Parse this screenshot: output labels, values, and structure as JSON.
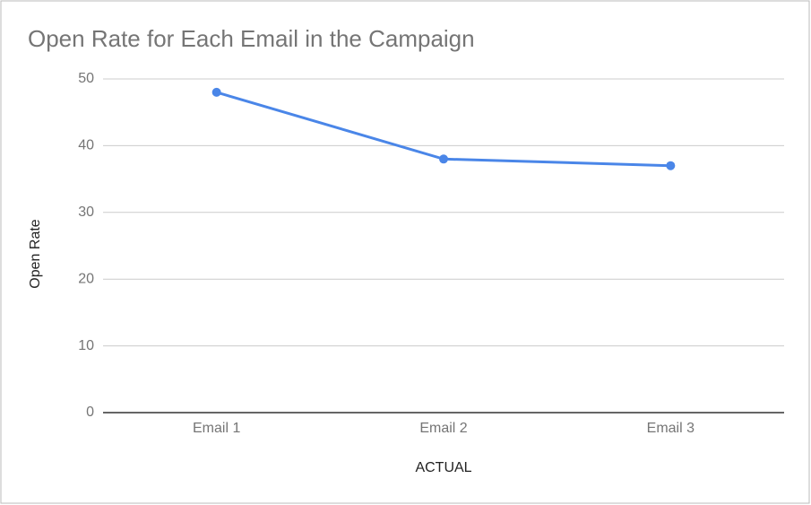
{
  "chart_data": {
    "type": "line",
    "title": "Open Rate for Each Email in the Campaign",
    "x_label": "ACTUAL",
    "y_label": "Open Rate",
    "categories": [
      "Email 1",
      "Email 2",
      "Email 3"
    ],
    "series": [
      {
        "name": "Open Rate",
        "color": "#4a86e8",
        "values": [
          48,
          38,
          37
        ]
      }
    ],
    "ylim": [
      0,
      50
    ],
    "yticks": [
      0,
      10,
      20,
      30,
      40,
      50
    ],
    "grid": true
  }
}
